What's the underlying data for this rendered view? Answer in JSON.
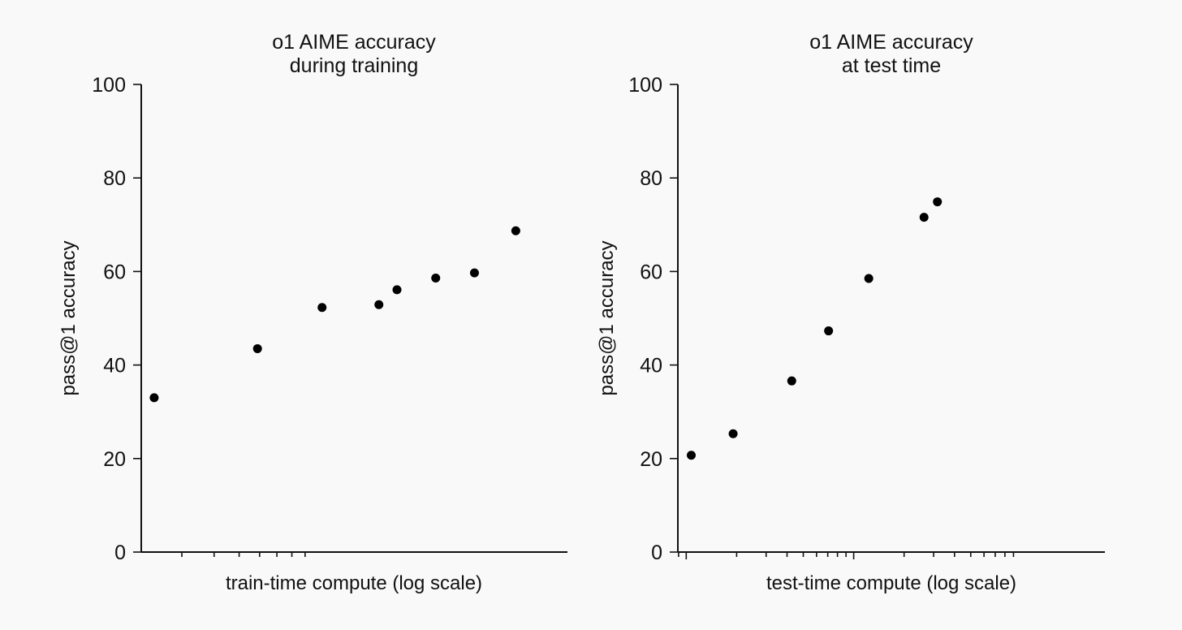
{
  "colors": {
    "background": "#f9f9f9",
    "axis": "#111111",
    "marker": "#000000"
  },
  "chart_data": [
    {
      "type": "scatter",
      "title": "o1 AIME accuracy during training",
      "title_lines": [
        "o1 AIME accuracy",
        "during training"
      ],
      "xlabel": "train-time compute (log scale)",
      "ylabel": "pass@1 accuracy",
      "x_scale": "log",
      "x_tick_labels": "none",
      "x_decades": [
        1,
        2
      ],
      "xlim": [
        1.32,
        2.97
      ],
      "ylim": [
        0,
        100
      ],
      "yticks": [
        0,
        20,
        40,
        60,
        80,
        100
      ],
      "grid": false,
      "legend": "none",
      "x": [
        1.37,
        1.77,
        2.02,
        2.24,
        2.31,
        2.46,
        2.61,
        2.77
      ],
      "y": [
        33,
        43.5,
        52.3,
        52.9,
        56.1,
        58.6,
        59.7,
        68.7
      ]
    },
    {
      "type": "scatter",
      "title": "o1 AIME accuracy at test time",
      "title_lines": [
        "o1 AIME accuracy",
        "at test time"
      ],
      "xlabel": "test-time compute (log scale)",
      "ylabel": "pass@1 accuracy",
      "x_scale": "log",
      "x_tick_labels": "none",
      "x_decades": [
        1,
        2,
        3
      ],
      "xlim": [
        0.95,
        3.5
      ],
      "ylim": [
        0,
        100
      ],
      "yticks": [
        0,
        20,
        40,
        60,
        80,
        100
      ],
      "grid": false,
      "legend": "none",
      "x": [
        1.03,
        1.28,
        1.63,
        1.85,
        2.09,
        2.42,
        2.5
      ],
      "y": [
        20.7,
        25.3,
        36.6,
        47.3,
        58.5,
        71.6,
        74.9
      ]
    }
  ]
}
